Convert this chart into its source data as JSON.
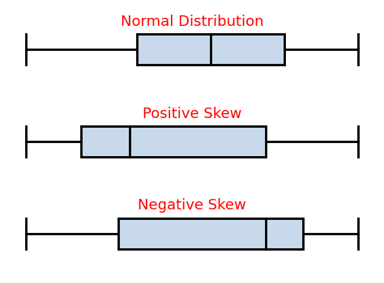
{
  "title_color": "#ff0000",
  "box_facecolor": "#c9d9ec",
  "box_edgecolor": "#000000",
  "whisker_color": "#000000",
  "background_color": "#ffffff",
  "title_fontsize": 13,
  "plots": [
    {
      "title": "Normal Distribution",
      "q1": 3.5,
      "median": 5.5,
      "q3": 7.5,
      "whisker_low": 0.5,
      "whisker_high": 9.5
    },
    {
      "title": "Positive Skew",
      "q1": 2.0,
      "median": 3.3,
      "q3": 7.0,
      "whisker_low": 0.5,
      "whisker_high": 9.5
    },
    {
      "title": "Negative Skew",
      "q1": 3.0,
      "median": 7.0,
      "q3": 8.0,
      "whisker_low": 0.5,
      "whisker_high": 9.5
    }
  ],
  "xlim": [
    0,
    10
  ],
  "linewidth": 2.0
}
